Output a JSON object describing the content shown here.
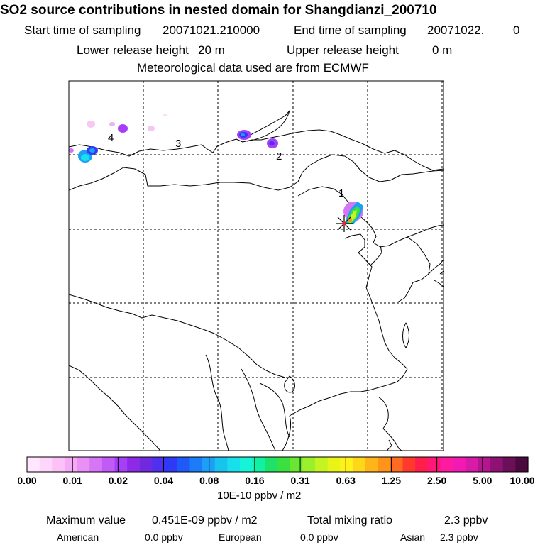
{
  "header": {
    "title": "SO2 source contributions in nested domain for Shangdianzi_200710",
    "start_label": "Start time of sampling",
    "start_value": "20071021.210000",
    "end_label": "End time of sampling",
    "end_value": "20071022.",
    "end_suffix": "0",
    "lower_label": "Lower release height",
    "lower_value": "20 m",
    "upper_label": "Upper release height",
    "upper_value": "0 m",
    "met_line": "Meteorological data used are from ECMWF"
  },
  "map": {
    "source_labels": [
      "1",
      "2",
      "3",
      "4"
    ]
  },
  "colorbar": {
    "colors": [
      "#ffe8ff",
      "#ffd6fb",
      "#fcc2f8",
      "#f7aaf4",
      "#e890f6",
      "#d676f6",
      "#c25af8",
      "#a73ffa",
      "#8e2ae6",
      "#6f2ae0",
      "#4f30f0",
      "#2f3af8",
      "#1f5af8",
      "#1c7bf8",
      "#1d9ff7",
      "#18c3ee",
      "#18e0ea",
      "#16f4d7",
      "#12f0a4",
      "#1ee268",
      "#39e03f",
      "#68e632",
      "#9af02b",
      "#c4f421",
      "#e8f418",
      "#fff21a",
      "#ffd71a",
      "#ffb519",
      "#ff9419",
      "#ff6b20",
      "#ff3a2c",
      "#ff1e4b",
      "#ff1878",
      "#ff1aa2",
      "#f21ab3",
      "#d81aa8",
      "#b5168f",
      "#8e1273",
      "#6a0f58",
      "#4a0a3e"
    ],
    "tick_labels": [
      "0.00",
      "0.01",
      "0.02",
      "0.04",
      "0.08",
      "0.16",
      "0.31",
      "0.63",
      "1.25",
      "2.50",
      "5.00",
      "10.00"
    ],
    "units": "10E-10 ppbv / m2"
  },
  "stats": {
    "max_label": "Maximum value",
    "max_value": "0.451E-09 ppbv / m2",
    "total_label": "Total mixing ratio",
    "total_value": "2.3 ppbv",
    "american_label": "American",
    "american_value": "0.0 ppbv",
    "european_label": "European",
    "european_value": "0.0 ppbv",
    "asian_label": "Asian",
    "asian_value": "2.3 ppbv"
  }
}
